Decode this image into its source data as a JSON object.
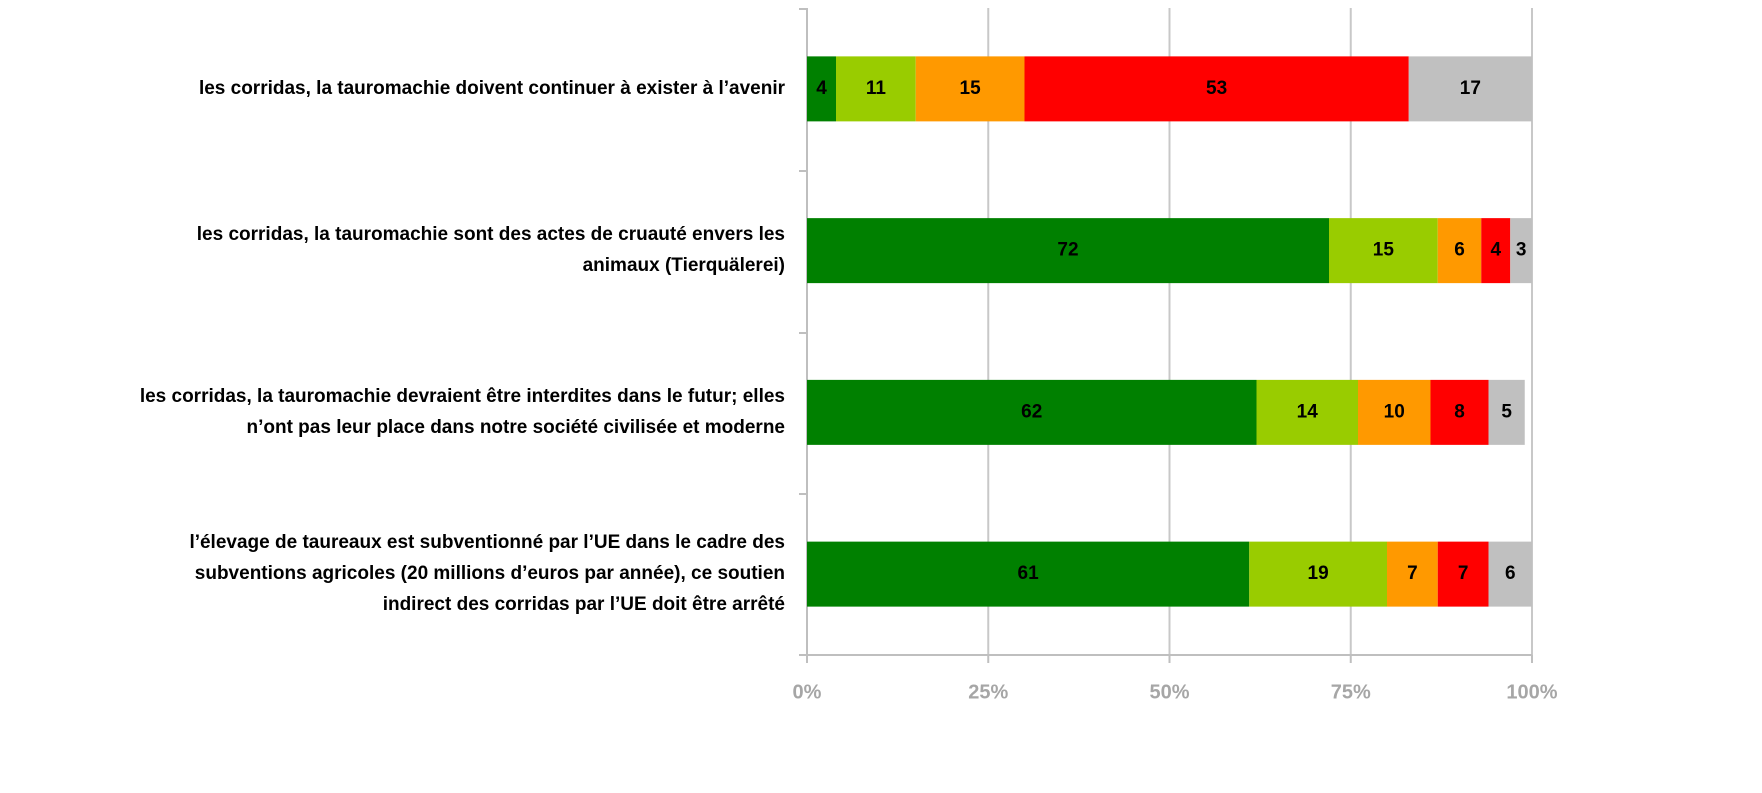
{
  "chart_data": {
    "type": "stacked-bar-horizontal",
    "categories": [
      [
        "les corridas, la tauromachie doivent continuer à exister à l’avenir"
      ],
      [
        "les corridas, la tauromachie sont des actes de cruauté envers les",
        "animaux  (Tierquälerei)"
      ],
      [
        "les corridas, la tauromachie devraient être interdites dans le futur; elles",
        "n’ont pas leur place dans notre société civilisée et moderne"
      ],
      [
        "l’élevage de taureaux est subventionné par l’UE dans le cadre des",
        "subventions agricoles (20 millions d’euros par année), ce soutien",
        "indirect des corridas par l’UE doit être arrêté"
      ]
    ],
    "series": [
      {
        "color": "#008000",
        "values": [
          4,
          72,
          62,
          61
        ]
      },
      {
        "color": "#99cc00",
        "values": [
          11,
          15,
          14,
          19
        ]
      },
      {
        "color": "#ff9900",
        "values": [
          15,
          6,
          10,
          7
        ]
      },
      {
        "color": "#ff0000",
        "values": [
          53,
          4,
          8,
          7
        ]
      },
      {
        "color": "#c0c0c0",
        "values": [
          17,
          3,
          5,
          6
        ]
      }
    ],
    "xlim": [
      0,
      100
    ],
    "xticks": [
      {
        "value": 0,
        "label": "0%"
      },
      {
        "value": 25,
        "label": "25%"
      },
      {
        "value": 50,
        "label": "50%"
      },
      {
        "value": 75,
        "label": "75%"
      },
      {
        "value": 100,
        "label": "100%"
      }
    ],
    "grid": true
  }
}
